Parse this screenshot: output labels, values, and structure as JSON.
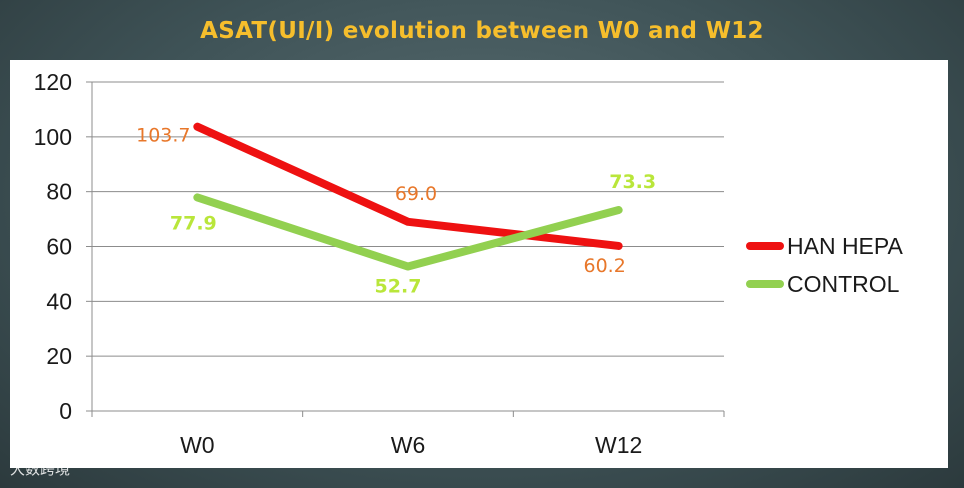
{
  "title": "ASAT(UI/I) evolution between W0 and W12",
  "watermark": "大数跨境",
  "chart_data": {
    "type": "line",
    "categories": [
      "W0",
      "W6",
      "W12"
    ],
    "ylim": [
      0,
      120
    ],
    "yticks": [
      0,
      20,
      40,
      60,
      80,
      100,
      120
    ],
    "grid": true,
    "legend_position": "right",
    "series": [
      {
        "name": "HAN HEPA",
        "values": [
          103.7,
          69.0,
          60.2
        ],
        "labels": [
          "103.7",
          "69.0",
          "60.2"
        ],
        "color": "#ee1111",
        "label_color": "#e8772a"
      },
      {
        "name": "CONTROL",
        "values": [
          77.9,
          52.7,
          73.3
        ],
        "labels": [
          "77.9",
          "52.7",
          "73.3"
        ],
        "color": "#92d050",
        "label_color": "#b9e63a"
      }
    ]
  }
}
